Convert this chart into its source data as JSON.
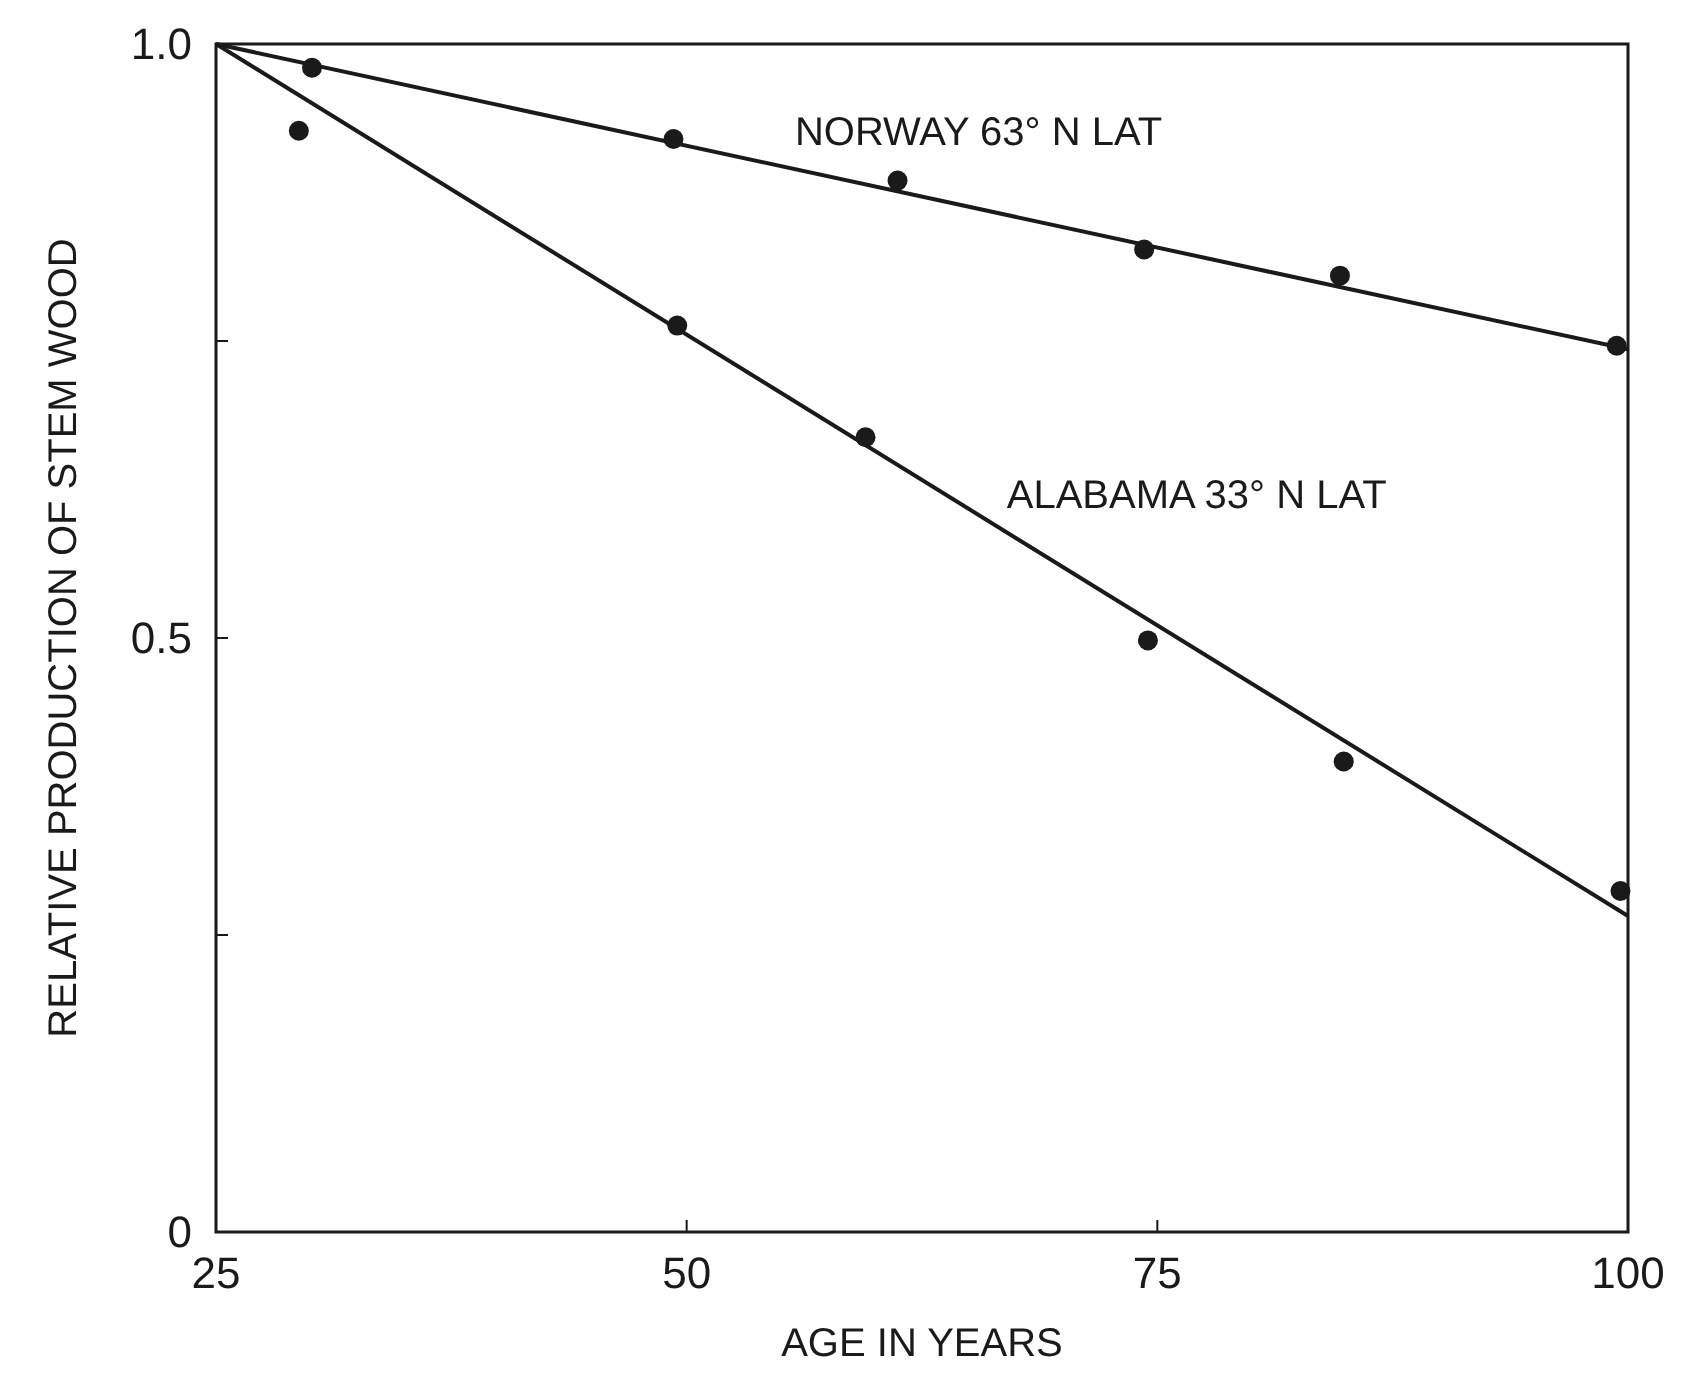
{
  "chart_data": {
    "type": "scatter",
    "xlabel": "AGE IN YEARS",
    "ylabel": "RELATIVE PRODUCTION OF STEM WOOD",
    "xlim": [
      25,
      100
    ],
    "ylim": [
      0,
      1.0
    ],
    "xticks": [
      25,
      50,
      75,
      100
    ],
    "yticks": [
      0,
      {
        "value": 0.25,
        "label": null
      },
      0.5,
      {
        "value": 0.75,
        "label": null
      },
      {
        "value": 1.0,
        "label": "1.0"
      }
    ],
    "grid": false,
    "marker": "circle",
    "series": [
      {
        "color": "#1a1a1a",
        "x": [
          30.1,
          49.3,
          61.2,
          74.3,
          84.7,
          99.4
        ],
        "values": [
          0.98,
          0.92,
          0.885,
          0.827,
          0.805,
          0.746
        ]
      },
      {
        "color": "#1a1a1a",
        "x": [
          29.4,
          49.5,
          59.5,
          74.5,
          84.9,
          99.6
        ],
        "values": [
          0.927,
          0.763,
          0.669,
          0.498,
          0.396,
          0.287
        ]
      },
      {
        "type": "line",
        "name": "NORWAY 63° N LAT",
        "color": "#1a1a1a",
        "marker": "none",
        "x": [
          25,
          100
        ],
        "values": [
          1.0,
          0.743
        ]
      },
      {
        "type": "line",
        "name": "ALABAMA 33° N LAT",
        "color": "#1a1a1a",
        "marker": "none",
        "x": [
          25,
          100
        ],
        "values": [
          1.0,
          0.266
        ]
      }
    ]
  }
}
